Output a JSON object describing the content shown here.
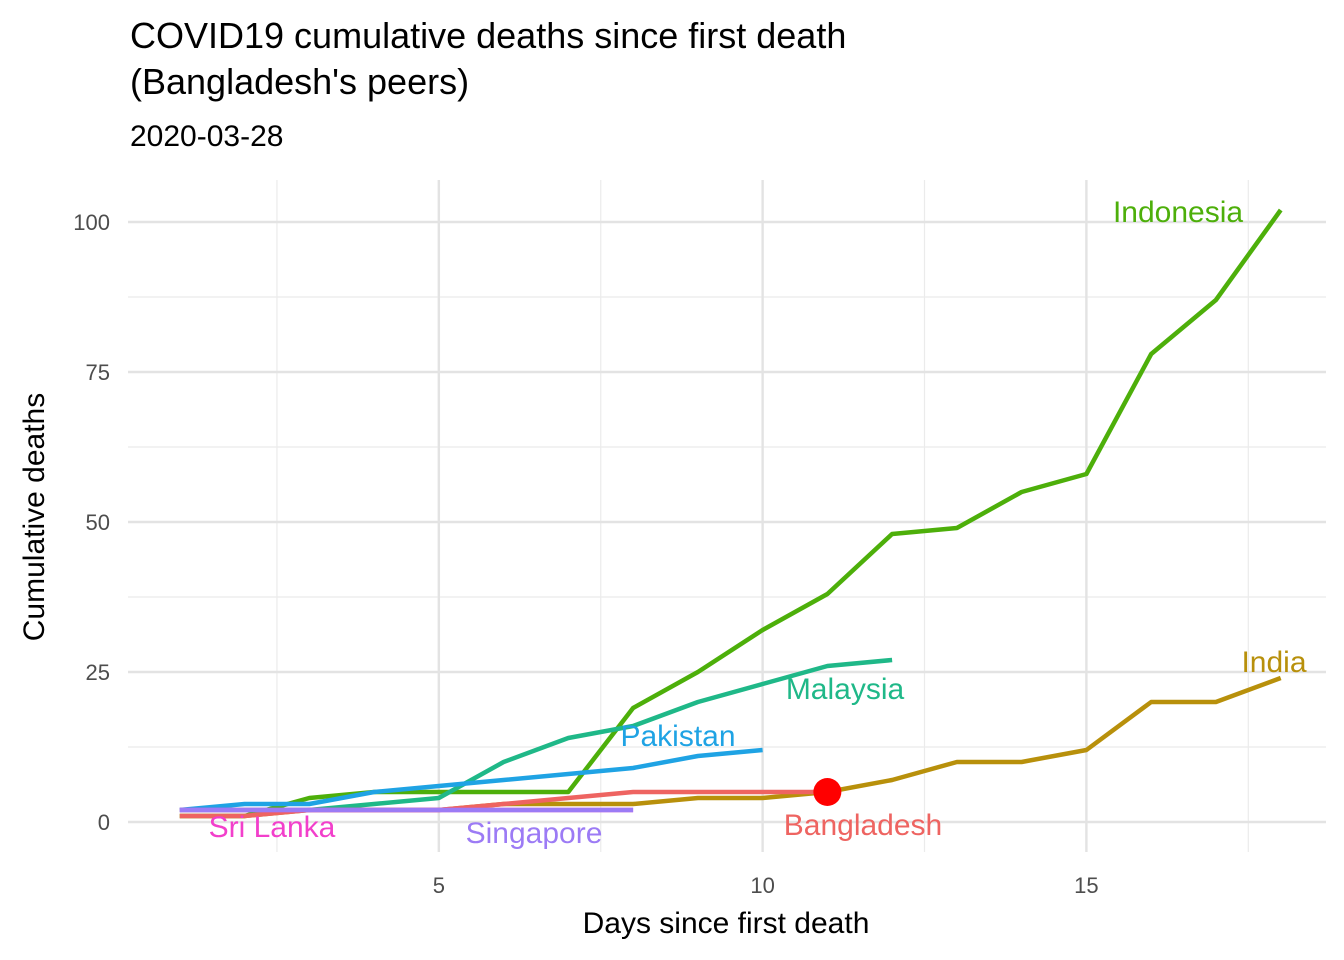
{
  "title_lines": [
    "COVID19 cumulative deaths since first death",
    "(Bangladesh's peers)"
  ],
  "subtitle": "2020-03-28",
  "chart_data": {
    "type": "line",
    "xlabel": "Days since first death",
    "ylabel": "Cumulative deaths",
    "xlim": [
      0.2,
      18.7
    ],
    "ylim": [
      -5,
      107
    ],
    "x_ticks": [
      5,
      10,
      15
    ],
    "y_ticks": [
      0,
      25,
      50,
      75,
      100
    ],
    "grid": true,
    "legend": "none (direct labels)",
    "series": [
      {
        "name": "Indonesia",
        "color": "#4daf0a",
        "x": [
          1,
          2,
          3,
          4,
          5,
          6,
          7,
          8,
          9,
          10,
          11,
          12,
          13,
          14,
          15,
          16,
          17,
          18
        ],
        "values": [
          1,
          1,
          4,
          5,
          5,
          5,
          5,
          19,
          25,
          32,
          38,
          48,
          49,
          55,
          58,
          78,
          87,
          102
        ]
      },
      {
        "name": "India",
        "color": "#b8900b",
        "x": [
          1,
          2,
          3,
          4,
          5,
          6,
          7,
          8,
          9,
          10,
          11,
          12,
          13,
          14,
          15,
          16,
          17,
          18
        ],
        "values": [
          1,
          1,
          2,
          2,
          2,
          3,
          3,
          3,
          4,
          4,
          5,
          7,
          10,
          10,
          12,
          20,
          20,
          24
        ]
      },
      {
        "name": "Malaysia",
        "color": "#1fb888",
        "x": [
          1,
          2,
          3,
          4,
          5,
          6,
          7,
          8,
          9,
          10,
          11,
          12
        ],
        "values": [
          2,
          2,
          2,
          3,
          4,
          10,
          14,
          16,
          20,
          23,
          26,
          27
        ]
      },
      {
        "name": "Pakistan",
        "color": "#1fa3e4",
        "x": [
          1,
          2,
          3,
          4,
          5,
          6,
          7,
          8,
          9,
          10
        ],
        "values": [
          2,
          3,
          3,
          5,
          6,
          7,
          8,
          9,
          11,
          12
        ]
      },
      {
        "name": "Bangladesh",
        "color": "#ee6461",
        "x": [
          1,
          2,
          3,
          4,
          5,
          6,
          7,
          8,
          9,
          10,
          11
        ],
        "values": [
          1,
          1,
          2,
          2,
          2,
          3,
          4,
          5,
          5,
          5,
          5
        ]
      },
      {
        "name": "Sri Lanka",
        "color": "#f23fcb",
        "x": [
          1,
          2,
          3,
          4,
          5,
          6,
          7,
          8
        ],
        "values": [
          2,
          2,
          2,
          2,
          2,
          2,
          2,
          2
        ]
      },
      {
        "name": "Singapore",
        "color": "#9c7bf5",
        "x": [
          1,
          2,
          3,
          4,
          5,
          6,
          7,
          8
        ],
        "values": [
          2,
          2,
          2,
          2,
          2,
          2,
          2,
          2
        ]
      }
    ],
    "highlight_point": {
      "series": "Bangladesh",
      "x": 11,
      "y": 5,
      "color": "#ff0000"
    }
  }
}
